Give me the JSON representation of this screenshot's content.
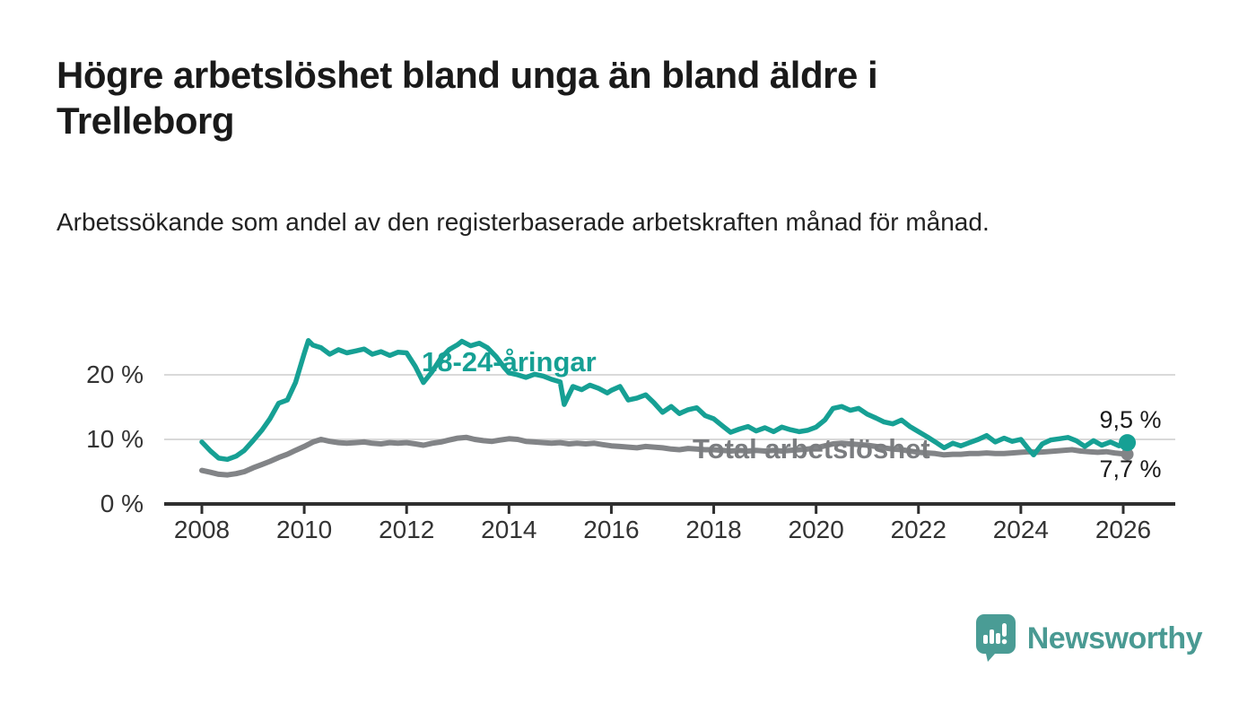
{
  "header": {
    "title": "Högre arbetslöshet bland unga än bland äldre i Trelleborg",
    "subtitle": "Arbetssökande som andel av den registerbaserade arbetskraften månad för månad."
  },
  "footer": {
    "brand": "Newsworthy",
    "logo_icon": "bar-chart-speech-bubble-icon"
  },
  "colors": {
    "young": "#16A094",
    "total": "#828487",
    "grid": "#d9d9d9",
    "axis": "#2e2e2e",
    "tick_text": "#333333",
    "brand": "#4A9C95"
  },
  "chart_data": {
    "type": "line",
    "unit": "%",
    "grid": "horizontal",
    "x_axis": {
      "lim": [
        2007.3,
        2027.0
      ],
      "ticks": [
        2008,
        2010,
        2012,
        2014,
        2016,
        2018,
        2020,
        2022,
        2024,
        2026
      ]
    },
    "y_axis": {
      "lim": [
        0,
        28
      ],
      "ticks": [
        {
          "value": 0,
          "label": "0 %"
        },
        {
          "value": 10,
          "label": "10 %"
        },
        {
          "value": 20,
          "label": "20 %"
        }
      ]
    },
    "series": [
      {
        "name": "Total arbetslöshet",
        "color": "#828487",
        "end_label": "7,7 %",
        "end_value": 7.7,
        "points": [
          [
            2008.0,
            5.2
          ],
          [
            2008.17,
            4.9
          ],
          [
            2008.33,
            4.6
          ],
          [
            2008.5,
            4.5
          ],
          [
            2008.67,
            4.7
          ],
          [
            2008.83,
            5.0
          ],
          [
            2009.0,
            5.6
          ],
          [
            2009.17,
            6.1
          ],
          [
            2009.33,
            6.6
          ],
          [
            2009.5,
            7.2
          ],
          [
            2009.67,
            7.7
          ],
          [
            2009.83,
            8.3
          ],
          [
            2010.0,
            8.9
          ],
          [
            2010.17,
            9.6
          ],
          [
            2010.33,
            10.0
          ],
          [
            2010.5,
            9.7
          ],
          [
            2010.67,
            9.5
          ],
          [
            2010.83,
            9.4
          ],
          [
            2011.0,
            9.5
          ],
          [
            2011.17,
            9.6
          ],
          [
            2011.33,
            9.4
          ],
          [
            2011.5,
            9.3
          ],
          [
            2011.67,
            9.5
          ],
          [
            2011.83,
            9.4
          ],
          [
            2012.0,
            9.5
          ],
          [
            2012.17,
            9.3
          ],
          [
            2012.33,
            9.1
          ],
          [
            2012.5,
            9.4
          ],
          [
            2012.67,
            9.6
          ],
          [
            2012.83,
            9.9
          ],
          [
            2013.0,
            10.2
          ],
          [
            2013.17,
            10.3
          ],
          [
            2013.33,
            10.0
          ],
          [
            2013.5,
            9.8
          ],
          [
            2013.67,
            9.7
          ],
          [
            2013.83,
            9.9
          ],
          [
            2014.0,
            10.1
          ],
          [
            2014.17,
            10.0
          ],
          [
            2014.33,
            9.7
          ],
          [
            2014.5,
            9.6
          ],
          [
            2014.67,
            9.5
          ],
          [
            2014.83,
            9.4
          ],
          [
            2015.0,
            9.5
          ],
          [
            2015.17,
            9.3
          ],
          [
            2015.33,
            9.4
          ],
          [
            2015.5,
            9.3
          ],
          [
            2015.67,
            9.4
          ],
          [
            2015.83,
            9.2
          ],
          [
            2016.0,
            9.0
          ],
          [
            2016.17,
            8.9
          ],
          [
            2016.33,
            8.8
          ],
          [
            2016.5,
            8.7
          ],
          [
            2016.67,
            8.9
          ],
          [
            2016.83,
            8.8
          ],
          [
            2017.0,
            8.7
          ],
          [
            2017.17,
            8.5
          ],
          [
            2017.33,
            8.4
          ],
          [
            2017.5,
            8.6
          ],
          [
            2017.67,
            8.5
          ],
          [
            2017.83,
            8.4
          ],
          [
            2018.0,
            8.4
          ],
          [
            2018.17,
            8.3
          ],
          [
            2018.33,
            8.2
          ],
          [
            2018.5,
            8.3
          ],
          [
            2018.67,
            8.2
          ],
          [
            2018.83,
            8.3
          ],
          [
            2019.0,
            8.2
          ],
          [
            2019.17,
            8.3
          ],
          [
            2019.33,
            8.2
          ],
          [
            2019.5,
            8.3
          ],
          [
            2019.67,
            8.4
          ],
          [
            2019.83,
            8.5
          ],
          [
            2020.0,
            8.7
          ],
          [
            2020.17,
            9.0
          ],
          [
            2020.33,
            9.3
          ],
          [
            2020.5,
            9.4
          ],
          [
            2020.67,
            9.3
          ],
          [
            2020.83,
            9.2
          ],
          [
            2021.0,
            9.1
          ],
          [
            2021.17,
            8.9
          ],
          [
            2021.33,
            8.7
          ],
          [
            2021.5,
            8.5
          ],
          [
            2021.67,
            8.4
          ],
          [
            2021.83,
            8.2
          ],
          [
            2022.0,
            8.0
          ],
          [
            2022.17,
            7.9
          ],
          [
            2022.33,
            7.8
          ],
          [
            2022.5,
            7.6
          ],
          [
            2022.67,
            7.7
          ],
          [
            2022.83,
            7.7
          ],
          [
            2023.0,
            7.8
          ],
          [
            2023.17,
            7.8
          ],
          [
            2023.33,
            7.9
          ],
          [
            2023.5,
            7.8
          ],
          [
            2023.67,
            7.8
          ],
          [
            2023.83,
            7.9
          ],
          [
            2024.0,
            8.0
          ],
          [
            2024.17,
            8.1
          ],
          [
            2024.33,
            8.0
          ],
          [
            2024.5,
            8.1
          ],
          [
            2024.67,
            8.2
          ],
          [
            2024.83,
            8.3
          ],
          [
            2025.0,
            8.4
          ],
          [
            2025.17,
            8.2
          ],
          [
            2025.33,
            8.1
          ],
          [
            2025.5,
            8.0
          ],
          [
            2025.67,
            8.1
          ],
          [
            2025.83,
            7.9
          ],
          [
            2026.08,
            7.7
          ]
        ]
      },
      {
        "name": "18-24-åringar",
        "color": "#16A094",
        "end_label": "9,5 %",
        "end_value": 9.5,
        "points": [
          [
            2008.0,
            9.6
          ],
          [
            2008.17,
            8.2
          ],
          [
            2008.33,
            7.1
          ],
          [
            2008.5,
            6.9
          ],
          [
            2008.67,
            7.4
          ],
          [
            2008.83,
            8.3
          ],
          [
            2009.0,
            9.8
          ],
          [
            2009.17,
            11.4
          ],
          [
            2009.33,
            13.2
          ],
          [
            2009.5,
            15.6
          ],
          [
            2009.67,
            16.1
          ],
          [
            2009.83,
            18.8
          ],
          [
            2010.0,
            23.3
          ],
          [
            2010.08,
            25.3
          ],
          [
            2010.17,
            24.6
          ],
          [
            2010.33,
            24.2
          ],
          [
            2010.5,
            23.2
          ],
          [
            2010.67,
            23.9
          ],
          [
            2010.83,
            23.4
          ],
          [
            2011.0,
            23.7
          ],
          [
            2011.17,
            24.0
          ],
          [
            2011.33,
            23.2
          ],
          [
            2011.5,
            23.6
          ],
          [
            2011.67,
            23.0
          ],
          [
            2011.83,
            23.5
          ],
          [
            2012.0,
            23.4
          ],
          [
            2012.17,
            21.3
          ],
          [
            2012.33,
            18.8
          ],
          [
            2012.5,
            20.5
          ],
          [
            2012.67,
            22.6
          ],
          [
            2012.83,
            23.9
          ],
          [
            2013.0,
            24.7
          ],
          [
            2013.08,
            25.2
          ],
          [
            2013.25,
            24.5
          ],
          [
            2013.42,
            24.9
          ],
          [
            2013.58,
            24.2
          ],
          [
            2013.75,
            22.8
          ],
          [
            2013.92,
            21.0
          ],
          [
            2014.0,
            20.3
          ],
          [
            2014.17,
            20.0
          ],
          [
            2014.33,
            19.6
          ],
          [
            2014.5,
            20.1
          ],
          [
            2014.67,
            19.8
          ],
          [
            2014.83,
            19.3
          ],
          [
            2015.0,
            18.9
          ],
          [
            2015.08,
            15.4
          ],
          [
            2015.25,
            18.2
          ],
          [
            2015.42,
            17.7
          ],
          [
            2015.58,
            18.4
          ],
          [
            2015.75,
            17.9
          ],
          [
            2015.92,
            17.2
          ],
          [
            2016.0,
            17.6
          ],
          [
            2016.17,
            18.2
          ],
          [
            2016.33,
            16.1
          ],
          [
            2016.5,
            16.4
          ],
          [
            2016.67,
            16.9
          ],
          [
            2016.83,
            15.7
          ],
          [
            2017.0,
            14.2
          ],
          [
            2017.17,
            15.1
          ],
          [
            2017.33,
            14.0
          ],
          [
            2017.5,
            14.6
          ],
          [
            2017.67,
            14.9
          ],
          [
            2017.83,
            13.7
          ],
          [
            2018.0,
            13.2
          ],
          [
            2018.17,
            12.1
          ],
          [
            2018.33,
            11.1
          ],
          [
            2018.5,
            11.6
          ],
          [
            2018.67,
            12.0
          ],
          [
            2018.83,
            11.3
          ],
          [
            2019.0,
            11.8
          ],
          [
            2019.17,
            11.2
          ],
          [
            2019.33,
            11.9
          ],
          [
            2019.5,
            11.5
          ],
          [
            2019.67,
            11.2
          ],
          [
            2019.83,
            11.4
          ],
          [
            2020.0,
            11.9
          ],
          [
            2020.17,
            13.0
          ],
          [
            2020.33,
            14.8
          ],
          [
            2020.5,
            15.1
          ],
          [
            2020.67,
            14.5
          ],
          [
            2020.83,
            14.8
          ],
          [
            2021.0,
            13.9
          ],
          [
            2021.17,
            13.3
          ],
          [
            2021.33,
            12.7
          ],
          [
            2021.5,
            12.4
          ],
          [
            2021.67,
            13.0
          ],
          [
            2021.83,
            12.0
          ],
          [
            2022.0,
            11.2
          ],
          [
            2022.17,
            10.4
          ],
          [
            2022.33,
            9.6
          ],
          [
            2022.5,
            8.7
          ],
          [
            2022.67,
            9.4
          ],
          [
            2022.83,
            9.0
          ],
          [
            2023.0,
            9.5
          ],
          [
            2023.17,
            10.0
          ],
          [
            2023.33,
            10.6
          ],
          [
            2023.5,
            9.6
          ],
          [
            2023.67,
            10.2
          ],
          [
            2023.83,
            9.7
          ],
          [
            2024.0,
            10.0
          ],
          [
            2024.17,
            8.3
          ],
          [
            2024.25,
            7.6
          ],
          [
            2024.42,
            9.3
          ],
          [
            2024.58,
            9.9
          ],
          [
            2024.75,
            10.1
          ],
          [
            2024.92,
            10.3
          ],
          [
            2025.08,
            9.8
          ],
          [
            2025.25,
            8.9
          ],
          [
            2025.42,
            9.8
          ],
          [
            2025.58,
            9.1
          ],
          [
            2025.75,
            9.6
          ],
          [
            2025.92,
            9.0
          ],
          [
            2026.08,
            9.5
          ]
        ]
      }
    ]
  }
}
